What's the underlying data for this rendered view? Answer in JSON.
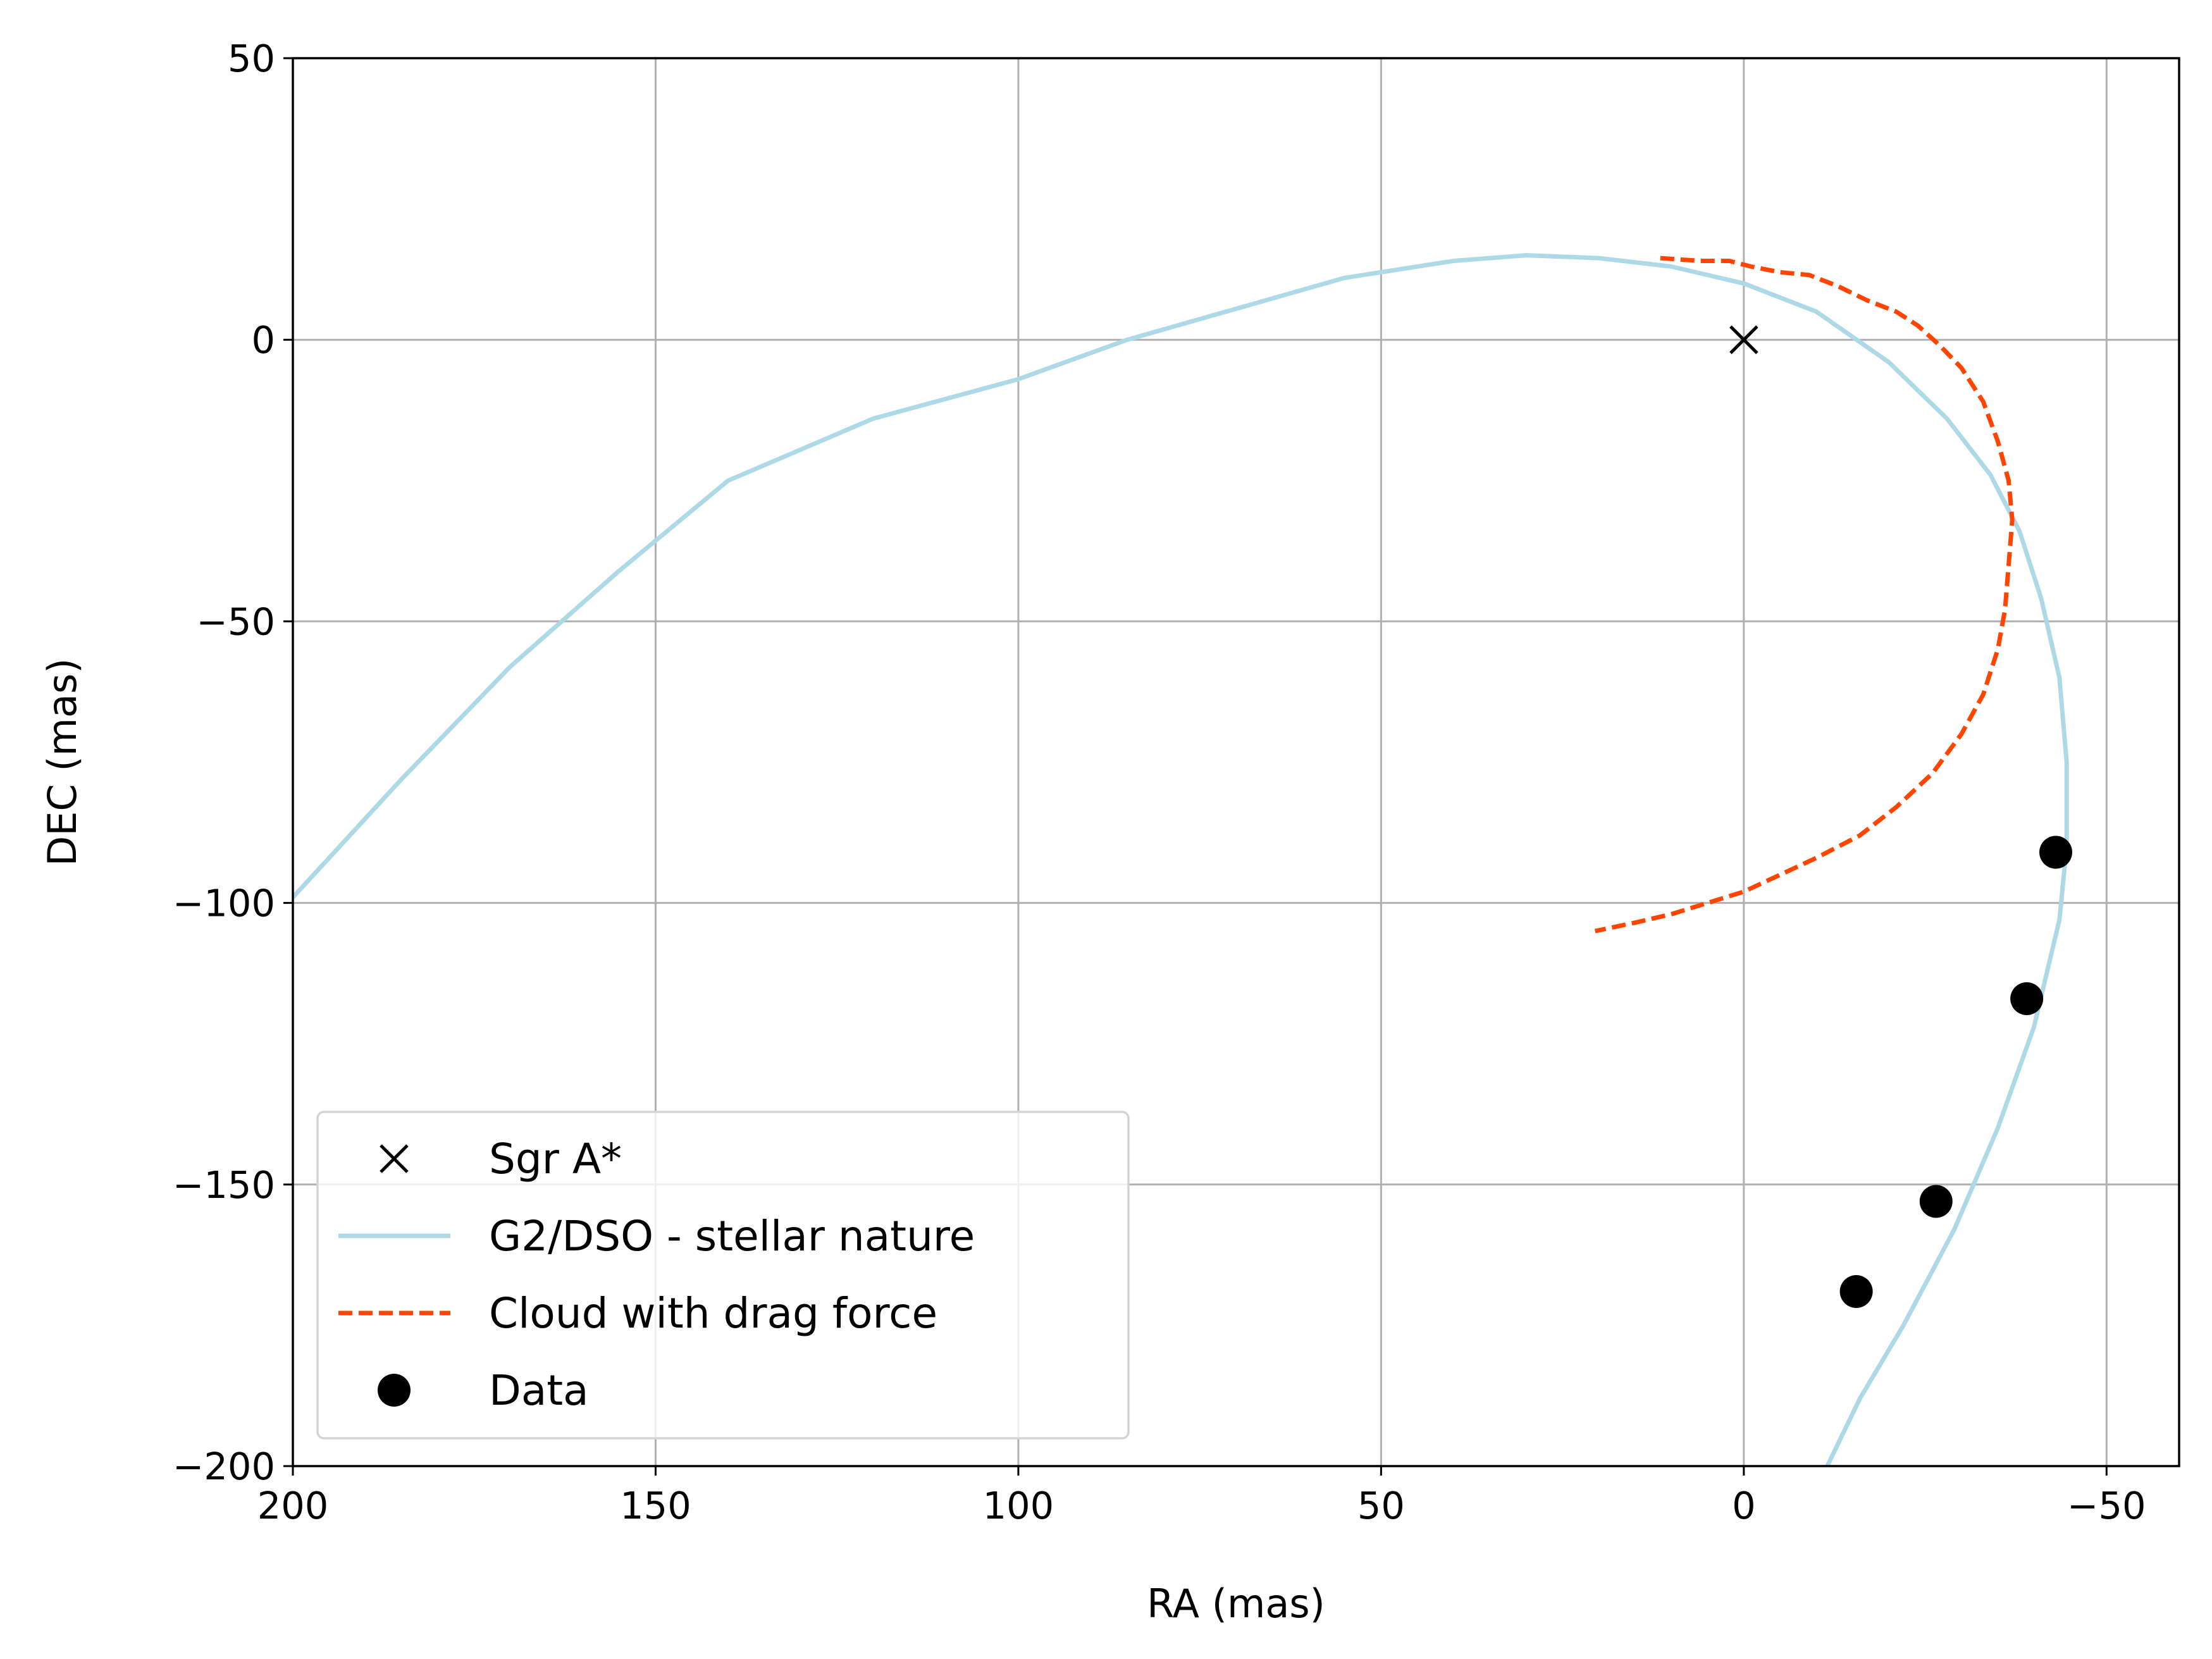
{
  "chart_data": {
    "type": "scatter",
    "xlabel": "RA (mas)",
    "ylabel": "DEC (mas)",
    "xlim": [
      200,
      -60
    ],
    "ylim": [
      -200,
      50
    ],
    "x_inverted": true,
    "xticks": [
      200,
      150,
      100,
      50,
      0,
      -50
    ],
    "yticks": [
      50,
      0,
      -50,
      -100,
      -150,
      -200
    ],
    "xtick_labels": [
      "200",
      "150",
      "100",
      "50",
      "0",
      "−50"
    ],
    "ytick_labels": [
      "50",
      "0",
      "−50",
      "−100",
      "−150",
      "−200"
    ],
    "grid": true,
    "legend_position": "lower-left",
    "series": [
      {
        "name": "Sgr A*",
        "kind": "marker-x",
        "color": "#000000",
        "points": [
          [
            0,
            0
          ]
        ]
      },
      {
        "name": "G2/DSO - stellar nature",
        "kind": "line",
        "color": "#add8e6",
        "points": [
          [
            200,
            -99
          ],
          [
            185,
            -78
          ],
          [
            170,
            -58
          ],
          [
            155,
            -41
          ],
          [
            140,
            -25
          ],
          [
            120,
            -14
          ],
          [
            100,
            -7
          ],
          [
            85,
            0
          ],
          [
            70,
            5.5
          ],
          [
            55,
            11
          ],
          [
            40,
            14
          ],
          [
            30,
            15
          ],
          [
            20,
            14.5
          ],
          [
            10,
            13
          ],
          [
            0,
            10
          ],
          [
            -10,
            5
          ],
          [
            -20,
            -4
          ],
          [
            -28,
            -14
          ],
          [
            -34,
            -24
          ],
          [
            -38,
            -34
          ],
          [
            -41,
            -46
          ],
          [
            -43.5,
            -60
          ],
          [
            -44.5,
            -75
          ],
          [
            -44.5,
            -90
          ],
          [
            -43.5,
            -103
          ],
          [
            -40,
            -122
          ],
          [
            -35,
            -140
          ],
          [
            -29,
            -158
          ],
          [
            -22,
            -175
          ],
          [
            -16,
            -188
          ],
          [
            -11.5,
            -200
          ]
        ]
      },
      {
        "name": "Cloud with drag force",
        "kind": "dashed-line",
        "color": "#ff4500",
        "points": [
          [
            11.5,
            14.5
          ],
          [
            6,
            14
          ],
          [
            2,
            14
          ],
          [
            -1,
            13
          ],
          [
            -5,
            12
          ],
          [
            -9,
            11.5
          ],
          [
            -13,
            9.5
          ],
          [
            -17,
            7
          ],
          [
            -21,
            5
          ],
          [
            -24,
            2.5
          ],
          [
            -27,
            -1
          ],
          [
            -30,
            -5
          ],
          [
            -33,
            -11
          ],
          [
            -35,
            -18
          ],
          [
            -36.5,
            -25
          ],
          [
            -37,
            -32
          ],
          [
            -36.5,
            -40
          ],
          [
            -36,
            -48
          ],
          [
            -35,
            -55
          ],
          [
            -33,
            -63
          ],
          [
            -30,
            -70
          ],
          [
            -26,
            -77
          ],
          [
            -21,
            -83
          ],
          [
            -16,
            -88
          ],
          [
            -10,
            -92
          ],
          [
            -5,
            -95
          ],
          [
            0,
            -98
          ],
          [
            5,
            -100
          ],
          [
            10,
            -102
          ],
          [
            15,
            -103.5
          ],
          [
            20.5,
            -105
          ]
        ]
      },
      {
        "name": "Data",
        "kind": "marker-dot",
        "color": "#000000",
        "points": [
          [
            -43,
            -91
          ],
          [
            -39,
            -117
          ],
          [
            -26.5,
            -153
          ],
          [
            -15.5,
            -169
          ]
        ]
      }
    ]
  }
}
